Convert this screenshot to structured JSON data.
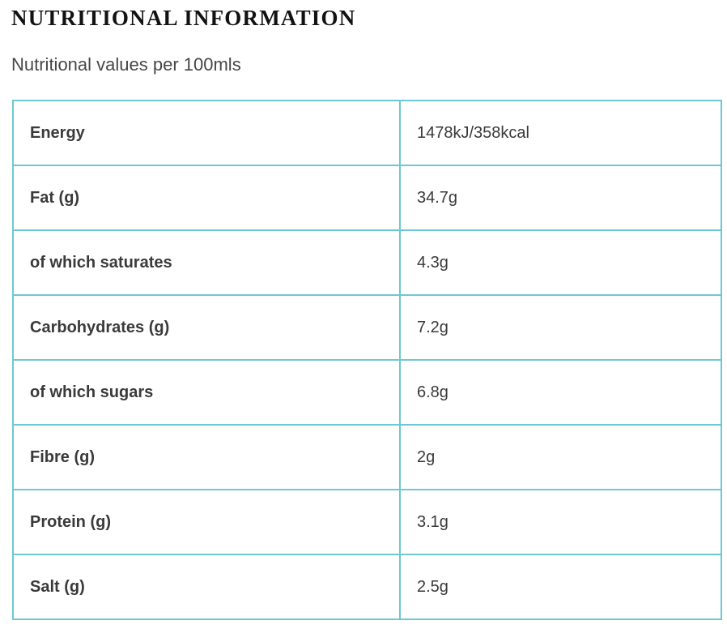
{
  "header": {
    "title": "NUTRITIONAL INFORMATION",
    "subtitle": "Nutritional values per 100mls"
  },
  "table": {
    "rows": [
      {
        "label": "Energy",
        "value": "1478kJ/358kcal"
      },
      {
        "label": "Fat (g)",
        "value": "34.7g"
      },
      {
        "label": "of which saturates",
        "value": "4.3g"
      },
      {
        "label": "Carbohydrates (g)",
        "value": "7.2g"
      },
      {
        "label": "of which sugars",
        "value": "6.8g"
      },
      {
        "label": "Fibre (g)",
        "value": "2g"
      },
      {
        "label": "Protein (g)",
        "value": "3.1g"
      },
      {
        "label": "Salt (g)",
        "value": "2.5g"
      }
    ]
  },
  "colors": {
    "table_border": "#6ec8d2",
    "cell_text": "#3a3a3a",
    "subtitle_text": "#474747",
    "heading_text": "#121212",
    "background": "#ffffff"
  }
}
